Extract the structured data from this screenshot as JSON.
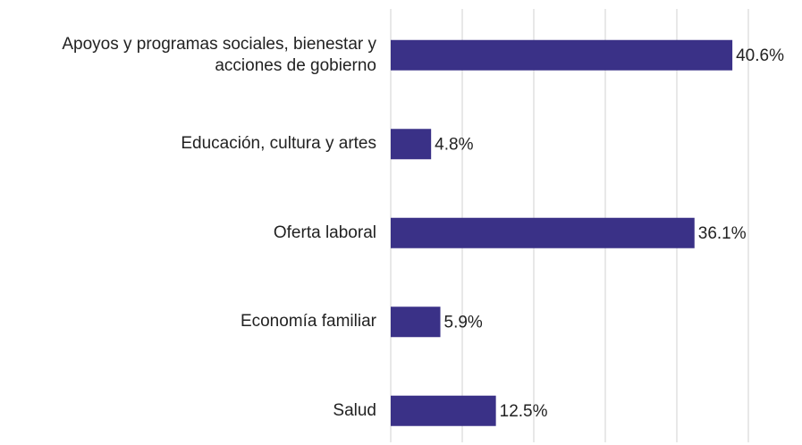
{
  "chart_data": {
    "type": "bar",
    "categories": [
      "Apoyos y programas sociales, bienestar y acciones de gobierno",
      "Educación, cultura y artes",
      "Oferta laboral",
      "Economía familiar",
      "Salud"
    ],
    "values": [
      40.6,
      4.8,
      36.1,
      5.9,
      12.5
    ],
    "value_labels": [
      "40.6%",
      "4.8%",
      "36.1%",
      "5.9%",
      "12.5%"
    ],
    "color": "#3a3187",
    "xlim": [
      0,
      42.5
    ],
    "xticks": [
      0,
      8.5,
      17,
      25.5,
      34,
      42.5
    ],
    "grid": true
  }
}
